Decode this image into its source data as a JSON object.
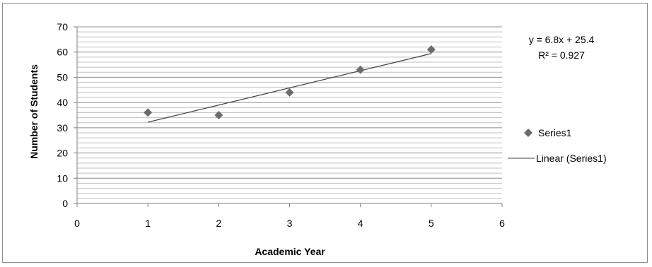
{
  "chart_data": {
    "type": "scatter",
    "title": "",
    "xlabel": "Academic Year",
    "ylabel": "Number of Students",
    "xlim": [
      0,
      6
    ],
    "ylim": [
      0,
      70
    ],
    "x_ticks": [
      "0",
      "1",
      "2",
      "3",
      "4",
      "5",
      "6"
    ],
    "y_ticks": [
      "0",
      "10",
      "20",
      "30",
      "40",
      "50",
      "60",
      "70"
    ],
    "minor_gridline_step": 2,
    "major_gridline_step": 10,
    "grid": true,
    "legend_position": "right",
    "series": [
      {
        "name": "Series1",
        "marker": "diamond",
        "color": "#6b6b6b",
        "x": [
          1,
          2,
          3,
          4,
          5
        ],
        "y": [
          36,
          35,
          44,
          53,
          61
        ]
      }
    ],
    "trendline": {
      "name": "Linear (Series1)",
      "type": "linear",
      "slope": 6.8,
      "intercept": 25.4,
      "x_range": [
        1,
        5
      ],
      "color": "#404040",
      "equation_text": "y = 6.8x + 25.4",
      "r2_text": "R² = 0.927"
    }
  }
}
